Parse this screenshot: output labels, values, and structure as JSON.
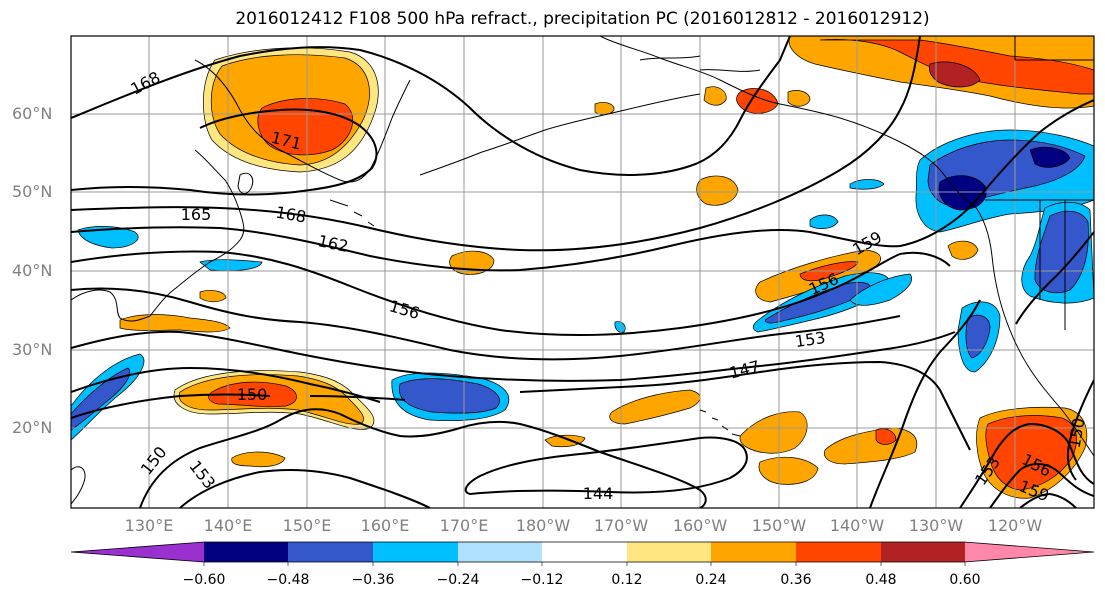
{
  "title": "2016012412 F108 500 hPa refract., precipitation PC (2016012812 - 2016012912)",
  "map": {
    "lat_labels": [
      "60°N",
      "50°N",
      "40°N",
      "30°N",
      "20°N"
    ],
    "lon_labels": [
      "130°E",
      "140°E",
      "150°E",
      "160°E",
      "170°E",
      "180°W",
      "170°W",
      "160°W",
      "150°W",
      "140°W",
      "130°W",
      "120°W"
    ],
    "contour_labels": [
      "168",
      "171",
      "165",
      "168",
      "162",
      "159",
      "156",
      "156",
      "153",
      "147",
      "150",
      "144",
      "150",
      "153",
      "153",
      "156",
      "159",
      "150"
    ],
    "gridline_color": "#999999",
    "coastline_color": "#000000"
  },
  "colorbar": {
    "tick_labels": [
      "−0.60",
      "−0.48",
      "−0.36",
      "−0.24",
      "−0.12",
      "0.12",
      "0.24",
      "0.36",
      "0.48",
      "0.60"
    ],
    "colors": [
      "#9b30d0",
      "#000080",
      "#3557cc",
      "#00bfff",
      "#b0e2ff",
      "#ffffff",
      "#ffe680",
      "#ffa500",
      "#ff4500",
      "#b22222",
      "#ff88aa"
    ]
  }
}
